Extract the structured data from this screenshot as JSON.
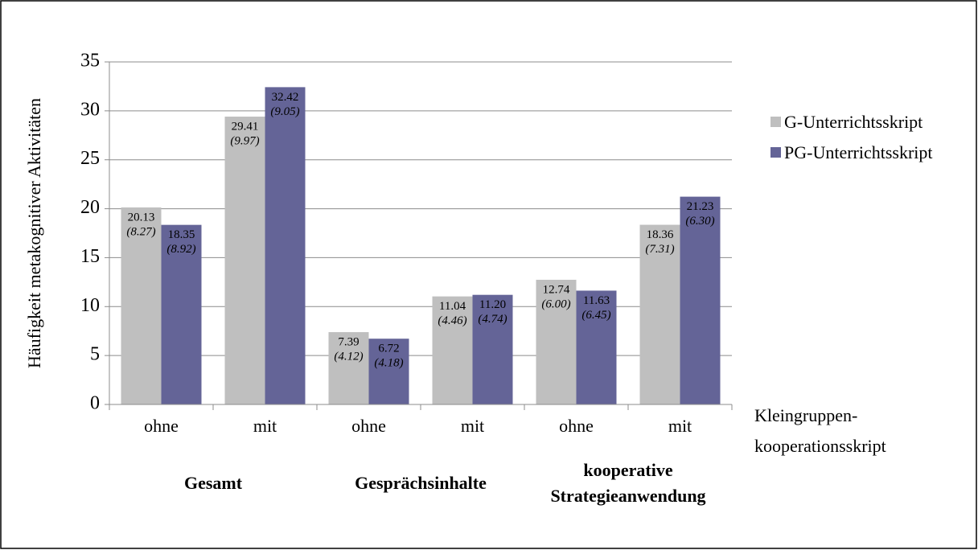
{
  "chart_data": {
    "type": "bar",
    "y_label": "Häufigkeit metakognitiver Aktivitäten",
    "x_label": "Kleingruppen-kooperationsskript",
    "categories": [
      "ohne",
      "mit",
      "ohne",
      "mit",
      "ohne",
      "mit"
    ],
    "groups": [
      {
        "lines": [
          "Gesamt"
        ],
        "span": [
          0,
          1
        ]
      },
      {
        "lines": [
          "Gesprächsinhalte"
        ],
        "span": [
          2,
          3
        ]
      },
      {
        "lines": [
          "kooperative",
          "Strategieanwendung"
        ],
        "span": [
          4,
          5
        ]
      }
    ],
    "series": [
      {
        "name": "G-Unterrichtsskript",
        "color": "#bfbfbf",
        "values": [
          20.13,
          29.41,
          7.39,
          11.04,
          12.74,
          18.36
        ],
        "value_labels": [
          "20.13",
          "29.41",
          "7.39",
          "11.04",
          "12.74",
          "18.36"
        ],
        "sd_labels": [
          "(8.27)",
          "(9.97)",
          "(4.12)",
          "(4.46)",
          "(6.00)",
          "(7.31)"
        ]
      },
      {
        "name": "PG-Unterrichtsskript",
        "color": "#646497",
        "values": [
          18.35,
          32.42,
          6.72,
          11.2,
          11.63,
          21.23
        ],
        "value_labels": [
          "18.35",
          "32.42",
          "6.72",
          "11.20",
          "11.63",
          "21.23"
        ],
        "sd_labels": [
          "(8.92)",
          "(9.05)",
          "(4.18)",
          "(4.74)",
          "(6.45)",
          "(6.30)"
        ]
      }
    ],
    "ylim": [
      0,
      35
    ],
    "yticks": [
      0,
      5,
      10,
      15,
      20,
      25,
      30,
      35
    ],
    "grid": true,
    "legend": "right"
  }
}
